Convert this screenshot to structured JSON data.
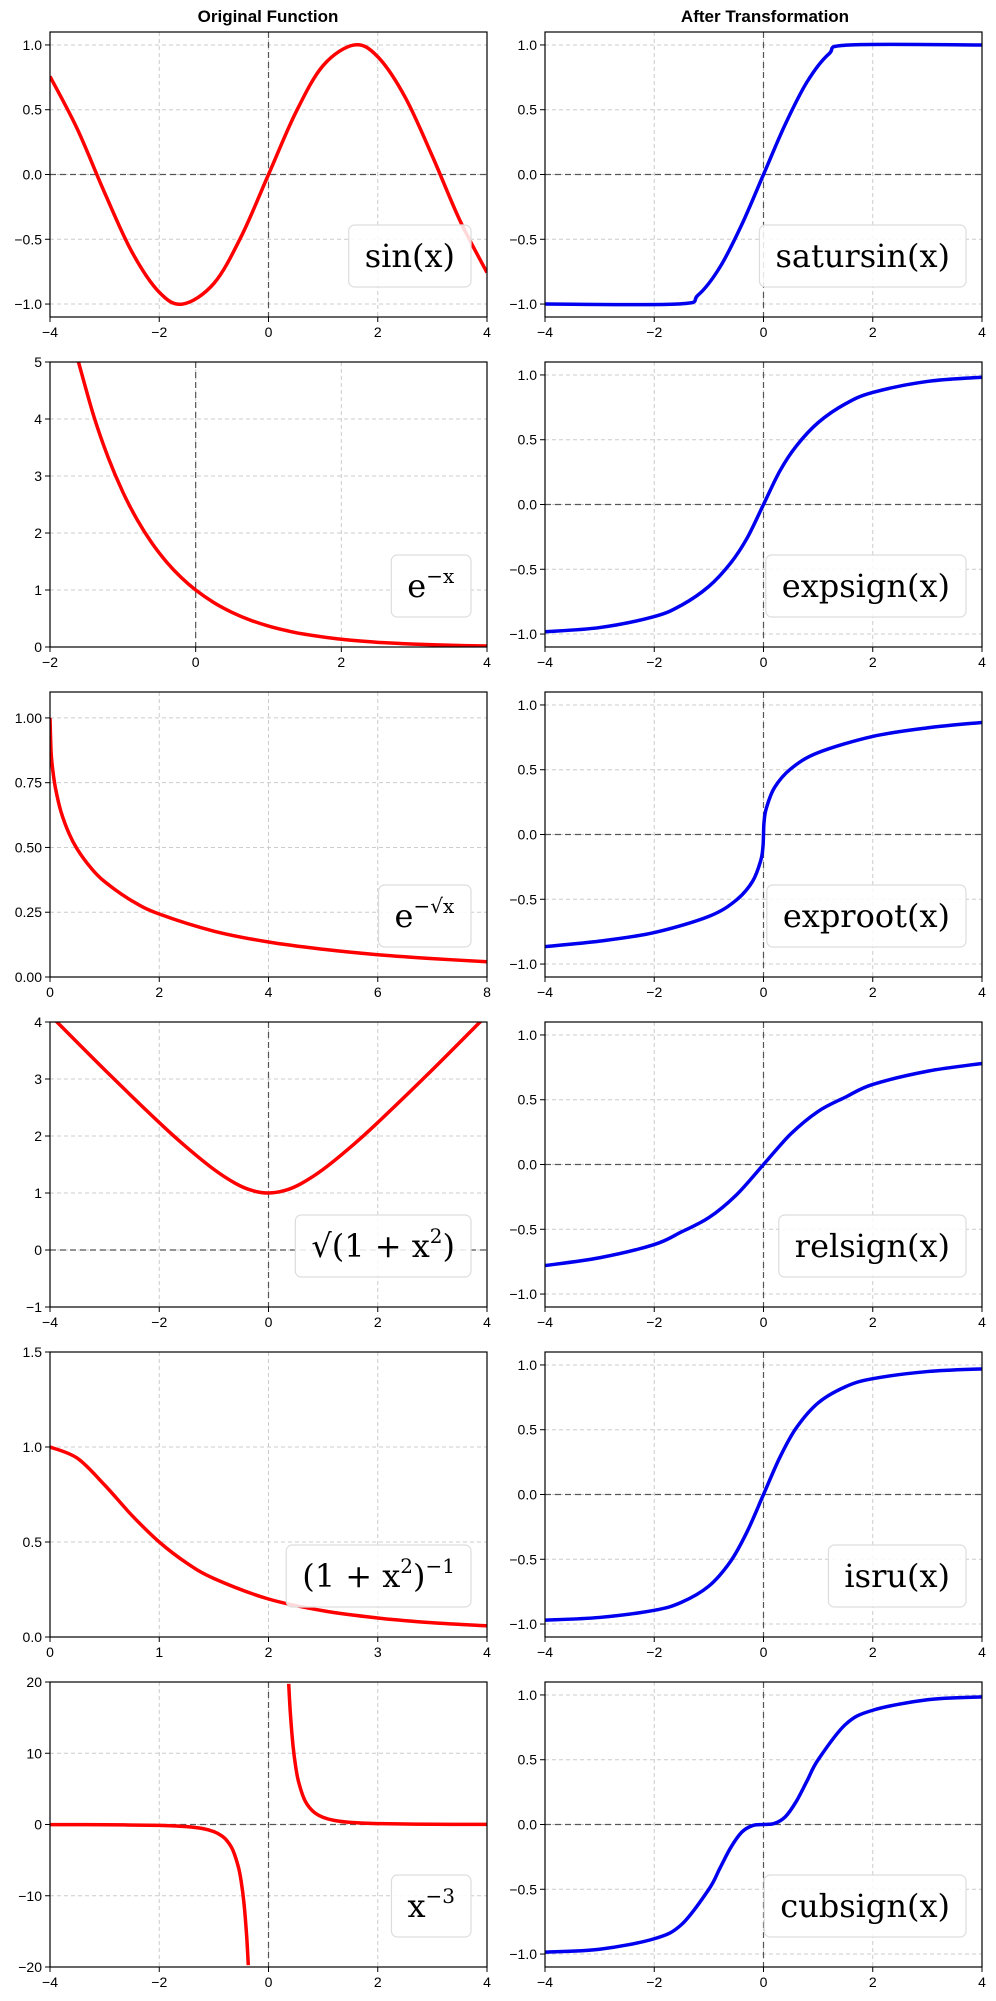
{
  "figure": {
    "titles": {
      "left": "Original Function",
      "right": "After Transformation"
    },
    "colors": {
      "original": "#ff0000",
      "transformed": "#0000ee",
      "grid": "#cccccc",
      "zero_line": "#555555"
    }
  },
  "chart_data": [
    {
      "type": "line",
      "id": "sin",
      "column": "left",
      "row": 0,
      "label": {
        "base": "sin(x)"
      },
      "xlim": [
        -4,
        4
      ],
      "ylim": [
        -1.1,
        1.1
      ],
      "xticks": [
        -4,
        -2,
        0,
        2,
        4
      ],
      "xtick_labels": [
        "−4",
        "−2",
        "0",
        "2",
        "4"
      ],
      "yticks": [
        -1,
        -0.5,
        0,
        0.5,
        1
      ],
      "ytick_labels": [
        "−1.0",
        "−0.5",
        "0.0",
        "0.5",
        "1.0"
      ],
      "hline": 0,
      "vline": 0,
      "grid": true,
      "series": [
        {
          "color": "#ff0000",
          "x": [
            -4,
            -3.5,
            -3,
            -2.5,
            -2,
            -1.57,
            -1,
            -0.5,
            0,
            0.5,
            1,
            1.57,
            2,
            2.5,
            3,
            3.5,
            4
          ],
          "y": [
            0.757,
            0.351,
            -0.141,
            -0.598,
            -0.909,
            -1,
            -0.841,
            -0.479,
            0,
            0.479,
            0.841,
            1,
            0.909,
            0.598,
            0.141,
            -0.351,
            -0.757
          ]
        }
      ]
    },
    {
      "type": "line",
      "id": "satursin",
      "column": "right",
      "row": 0,
      "label": {
        "base": "satursin(x)"
      },
      "xlim": [
        -4,
        4
      ],
      "ylim": [
        -1.1,
        1.1
      ],
      "xticks": [
        -4,
        -2,
        0,
        2,
        4
      ],
      "xtick_labels": [
        "−4",
        "−2",
        "0",
        "2",
        "4"
      ],
      "yticks": [
        -1,
        -0.5,
        0,
        0.5,
        1
      ],
      "ytick_labels": [
        "−1.0",
        "−0.5",
        "0.0",
        "0.5",
        "1.0"
      ],
      "hline": 0,
      "vline": 0,
      "grid": true,
      "series": [
        {
          "color": "#0000ee",
          "x": [
            -4,
            -1.57,
            -1.2,
            -0.8,
            -0.4,
            0,
            0.4,
            0.8,
            1.2,
            1.57,
            4
          ],
          "y": [
            -1,
            -1,
            -0.932,
            -0.717,
            -0.389,
            0,
            0.389,
            0.717,
            0.932,
            1,
            1
          ]
        }
      ]
    },
    {
      "type": "line",
      "id": "exp_neg",
      "column": "left",
      "row": 1,
      "label": {
        "base": "e",
        "sup": "−x"
      },
      "xlim": [
        -2,
        4
      ],
      "ylim": [
        0,
        5
      ],
      "xticks": [
        -2,
        0,
        2,
        4
      ],
      "xtick_labels": [
        "−2",
        "0",
        "2",
        "4"
      ],
      "yticks": [
        0,
        1,
        2,
        3,
        4,
        5
      ],
      "ytick_labels": [
        "0",
        "1",
        "2",
        "3",
        "4",
        "5"
      ],
      "hline": null,
      "vline": 0,
      "grid": true,
      "series": [
        {
          "color": "#ff0000",
          "x": [
            -1.609,
            -1.4,
            -1.2,
            -1,
            -0.8,
            -0.6,
            -0.4,
            -0.2,
            0,
            0.25,
            0.5,
            0.75,
            1,
            1.25,
            1.5,
            2,
            2.5,
            3,
            3.5,
            4
          ],
          "y": [
            5,
            4.055,
            3.32,
            2.718,
            2.226,
            1.822,
            1.492,
            1.221,
            1,
            0.779,
            0.607,
            0.472,
            0.368,
            0.287,
            0.223,
            0.135,
            0.082,
            0.05,
            0.03,
            0.018
          ]
        }
      ]
    },
    {
      "type": "line",
      "id": "expsign",
      "column": "right",
      "row": 1,
      "label": {
        "base": "expsign(x)"
      },
      "xlim": [
        -4,
        4
      ],
      "ylim": [
        -1.1,
        1.1
      ],
      "xticks": [
        -4,
        -2,
        0,
        2,
        4
      ],
      "xtick_labels": [
        "−4",
        "−2",
        "0",
        "2",
        "4"
      ],
      "yticks": [
        -1,
        -0.5,
        0,
        0.5,
        1
      ],
      "ytick_labels": [
        "−1.0",
        "−0.5",
        "0.0",
        "0.5",
        "1.0"
      ],
      "hline": 0,
      "vline": 0,
      "grid": true,
      "series": [
        {
          "color": "#0000ee",
          "x": [
            -4,
            -3,
            -2,
            -1.5,
            -1,
            -0.6,
            -0.3,
            0,
            0.3,
            0.6,
            1,
            1.5,
            2,
            3,
            4
          ],
          "y": [
            -0.982,
            -0.95,
            -0.865,
            -0.777,
            -0.632,
            -0.451,
            -0.259,
            0,
            0.259,
            0.451,
            0.632,
            0.777,
            0.865,
            0.95,
            0.982
          ]
        }
      ]
    },
    {
      "type": "line",
      "id": "exp_neg_root",
      "column": "left",
      "row": 2,
      "label": {
        "base": "e",
        "sup": "−√x"
      },
      "xlim": [
        0,
        8
      ],
      "ylim": [
        0,
        1.1
      ],
      "xticks": [
        0,
        2,
        4,
        6,
        8
      ],
      "xtick_labels": [
        "0",
        "2",
        "4",
        "6",
        "8"
      ],
      "yticks": [
        0,
        0.25,
        0.5,
        0.75,
        1
      ],
      "ytick_labels": [
        "0.00",
        "0.25",
        "0.50",
        "0.75",
        "1.00"
      ],
      "hline": null,
      "vline": null,
      "grid": true,
      "series": [
        {
          "color": "#ff0000",
          "x": [
            0,
            0.02,
            0.05,
            0.1,
            0.2,
            0.35,
            0.5,
            0.75,
            1,
            1.5,
            2,
            3,
            4,
            5,
            6,
            7,
            8
          ],
          "y": [
            1,
            0.868,
            0.8,
            0.729,
            0.639,
            0.553,
            0.493,
            0.421,
            0.368,
            0.294,
            0.243,
            0.177,
            0.135,
            0.107,
            0.086,
            0.071,
            0.059
          ]
        }
      ]
    },
    {
      "type": "line",
      "id": "exproot",
      "column": "right",
      "row": 2,
      "label": {
        "base": "exproot(x)"
      },
      "xlim": [
        -4,
        4
      ],
      "ylim": [
        -1.1,
        1.1
      ],
      "xticks": [
        -4,
        -2,
        0,
        2,
        4
      ],
      "xtick_labels": [
        "−4",
        "−2",
        "0",
        "2",
        "4"
      ],
      "yticks": [
        -1,
        -0.5,
        0,
        0.5,
        1
      ],
      "ytick_labels": [
        "−1.0",
        "−0.5",
        "0.0",
        "0.5",
        "1.0"
      ],
      "hline": 0,
      "vline": 0,
      "grid": true,
      "series": [
        {
          "color": "#0000ee",
          "x": [
            -4,
            -3,
            -2,
            -1,
            -0.5,
            -0.2,
            -0.05,
            -0.01,
            0,
            0.01,
            0.05,
            0.2,
            0.5,
            1,
            2,
            3,
            4
          ],
          "y": [
            -0.865,
            -0.823,
            -0.757,
            -0.632,
            -0.507,
            -0.361,
            -0.2,
            -0.095,
            0,
            0.095,
            0.2,
            0.361,
            0.507,
            0.632,
            0.757,
            0.823,
            0.865
          ]
        }
      ]
    },
    {
      "type": "line",
      "id": "sqrt_one_plus",
      "column": "left",
      "row": 3,
      "label": {
        "base": "√(1 + x",
        "sup": "2",
        "tail": ")"
      },
      "xlim": [
        -4,
        4
      ],
      "ylim": [
        -1,
        4
      ],
      "xticks": [
        -4,
        -2,
        0,
        2,
        4
      ],
      "xtick_labels": [
        "−4",
        "−2",
        "0",
        "2",
        "4"
      ],
      "yticks": [
        -1,
        0,
        1,
        2,
        3,
        4
      ],
      "ytick_labels": [
        "−1",
        "0",
        "1",
        "2",
        "3",
        "4"
      ],
      "hline": 0,
      "vline": 0,
      "grid": true,
      "series": [
        {
          "color": "#ff0000",
          "x": [
            -4,
            -3,
            -2,
            -1.5,
            -1,
            -0.6,
            -0.3,
            0,
            0.3,
            0.6,
            1,
            1.5,
            2,
            3,
            4
          ],
          "y": [
            4.123,
            3.162,
            2.236,
            1.803,
            1.414,
            1.166,
            1.044,
            1,
            1.044,
            1.166,
            1.414,
            1.803,
            2.236,
            3.162,
            4.123
          ]
        }
      ]
    },
    {
      "type": "line",
      "id": "relsign",
      "column": "right",
      "row": 3,
      "label": {
        "base": "relsign(x)"
      },
      "xlim": [
        -4,
        4
      ],
      "ylim": [
        -1.1,
        1.1
      ],
      "xticks": [
        -4,
        -2,
        0,
        2,
        4
      ],
      "xtick_labels": [
        "−4",
        "−2",
        "0",
        "2",
        "4"
      ],
      "yticks": [
        -1,
        -0.5,
        0,
        0.5,
        1
      ],
      "ytick_labels": [
        "−1.0",
        "−0.5",
        "0.0",
        "0.5",
        "1.0"
      ],
      "hline": 0,
      "vline": 0,
      "grid": true,
      "series": [
        {
          "color": "#0000ee",
          "x": [
            -4,
            -3,
            -2,
            -1.5,
            -1,
            -0.5,
            0,
            0.5,
            1,
            1.5,
            2,
            3,
            4
          ],
          "y": [
            -0.78,
            -0.72,
            -0.618,
            -0.52,
            -0.41,
            -0.236,
            0,
            0.236,
            0.41,
            0.52,
            0.618,
            0.72,
            0.78
          ]
        }
      ]
    },
    {
      "type": "line",
      "id": "inverse_one_plus",
      "column": "left",
      "row": 4,
      "label": {
        "base": "(1 + x",
        "sup": "2",
        "tail": ")",
        "sup2": "−1"
      },
      "xlim": [
        0,
        4
      ],
      "ylim": [
        0,
        1.5
      ],
      "xticks": [
        0,
        1,
        2,
        3,
        4
      ],
      "xtick_labels": [
        "0",
        "1",
        "2",
        "3",
        "4"
      ],
      "yticks": [
        0,
        0.5,
        1,
        1.5
      ],
      "ytick_labels": [
        "0.0",
        "0.5",
        "1.0",
        "1.5"
      ],
      "hline": null,
      "vline": null,
      "grid": true,
      "series": [
        {
          "color": "#ff0000",
          "x": [
            0,
            0.25,
            0.5,
            0.75,
            1,
            1.25,
            1.5,
            2,
            2.5,
            3,
            3.5,
            4
          ],
          "y": [
            1,
            0.941,
            0.8,
            0.64,
            0.5,
            0.39,
            0.308,
            0.2,
            0.138,
            0.1,
            0.075,
            0.059
          ]
        }
      ]
    },
    {
      "type": "line",
      "id": "isru",
      "column": "right",
      "row": 4,
      "label": {
        "base": "isru(x)"
      },
      "xlim": [
        -4,
        4
      ],
      "ylim": [
        -1.1,
        1.1
      ],
      "xticks": [
        -4,
        -2,
        0,
        2,
        4
      ],
      "xtick_labels": [
        "−4",
        "−2",
        "0",
        "2",
        "4"
      ],
      "yticks": [
        -1,
        -0.5,
        0,
        0.5,
        1
      ],
      "ytick_labels": [
        "−1.0",
        "−0.5",
        "0.0",
        "0.5",
        "1.0"
      ],
      "hline": 0,
      "vline": 0,
      "grid": true,
      "series": [
        {
          "color": "#0000ee",
          "x": [
            -4,
            -3,
            -2,
            -1.5,
            -1,
            -0.6,
            -0.3,
            0,
            0.3,
            0.6,
            1,
            1.5,
            2,
            3,
            4
          ],
          "y": [
            -0.97,
            -0.949,
            -0.894,
            -0.832,
            -0.707,
            -0.514,
            -0.287,
            0,
            0.287,
            0.514,
            0.707,
            0.832,
            0.894,
            0.949,
            0.97
          ]
        }
      ]
    },
    {
      "type": "line",
      "id": "inverse_cube",
      "column": "left",
      "row": 5,
      "label": {
        "base": "x",
        "sup": "−3"
      },
      "xlim": [
        -4,
        4
      ],
      "ylim": [
        -20,
        20
      ],
      "xticks": [
        -4,
        -2,
        0,
        2,
        4
      ],
      "xtick_labels": [
        "−4",
        "−2",
        "0",
        "2",
        "4"
      ],
      "yticks": [
        -20,
        -10,
        0,
        10,
        20
      ],
      "ytick_labels": [
        "−20",
        "−10",
        "0",
        "10",
        "20"
      ],
      "hline": 0,
      "vline": 0,
      "grid": true,
      "series": [
        {
          "color": "#ff0000",
          "x": [
            -4,
            -3,
            -2,
            -1.5,
            -1.2,
            -1,
            -0.85,
            -0.75,
            -0.65,
            -0.55,
            -0.5,
            -0.45,
            -0.4,
            -0.37
          ],
          "y": [
            -0.016,
            -0.037,
            -0.125,
            -0.296,
            -0.579,
            -1,
            -1.628,
            -2.37,
            -3.641,
            -6.011,
            -8,
            -10.974,
            -15.625,
            -19.742
          ]
        },
        {
          "color": "#ff0000",
          "x": [
            0.37,
            0.4,
            0.45,
            0.5,
            0.55,
            0.65,
            0.75,
            0.85,
            1,
            1.2,
            1.5,
            2,
            3,
            4
          ],
          "y": [
            19.742,
            15.625,
            10.974,
            8,
            6.011,
            3.641,
            2.37,
            1.628,
            1,
            0.579,
            0.296,
            0.125,
            0.037,
            0.016
          ]
        }
      ]
    },
    {
      "type": "line",
      "id": "cubsign",
      "column": "right",
      "row": 5,
      "label": {
        "base": "cubsign(x)"
      },
      "xlim": [
        -4,
        4
      ],
      "ylim": [
        -1.1,
        1.1
      ],
      "xticks": [
        -4,
        -2,
        0,
        2,
        4
      ],
      "xtick_labels": [
        "−4",
        "−2",
        "0",
        "2",
        "4"
      ],
      "yticks": [
        -1,
        -0.5,
        0,
        0.5,
        1
      ],
      "ytick_labels": [
        "−1.0",
        "−0.5",
        "0.0",
        "0.5",
        "1.0"
      ],
      "hline": 0,
      "vline": 0,
      "grid": true,
      "series": [
        {
          "color": "#0000ee",
          "x": [
            -4,
            -3,
            -2,
            -1.5,
            -1,
            -0.8,
            -0.6,
            -0.4,
            -0.2,
            0,
            0.2,
            0.4,
            0.6,
            0.8,
            1,
            1.5,
            2,
            3,
            4
          ],
          "y": [
            -0.985,
            -0.963,
            -0.882,
            -0.772,
            -0.5,
            -0.339,
            -0.178,
            -0.06,
            -0.008,
            0,
            0.008,
            0.06,
            0.178,
            0.339,
            0.5,
            0.772,
            0.882,
            0.963,
            0.985
          ]
        }
      ]
    }
  ]
}
